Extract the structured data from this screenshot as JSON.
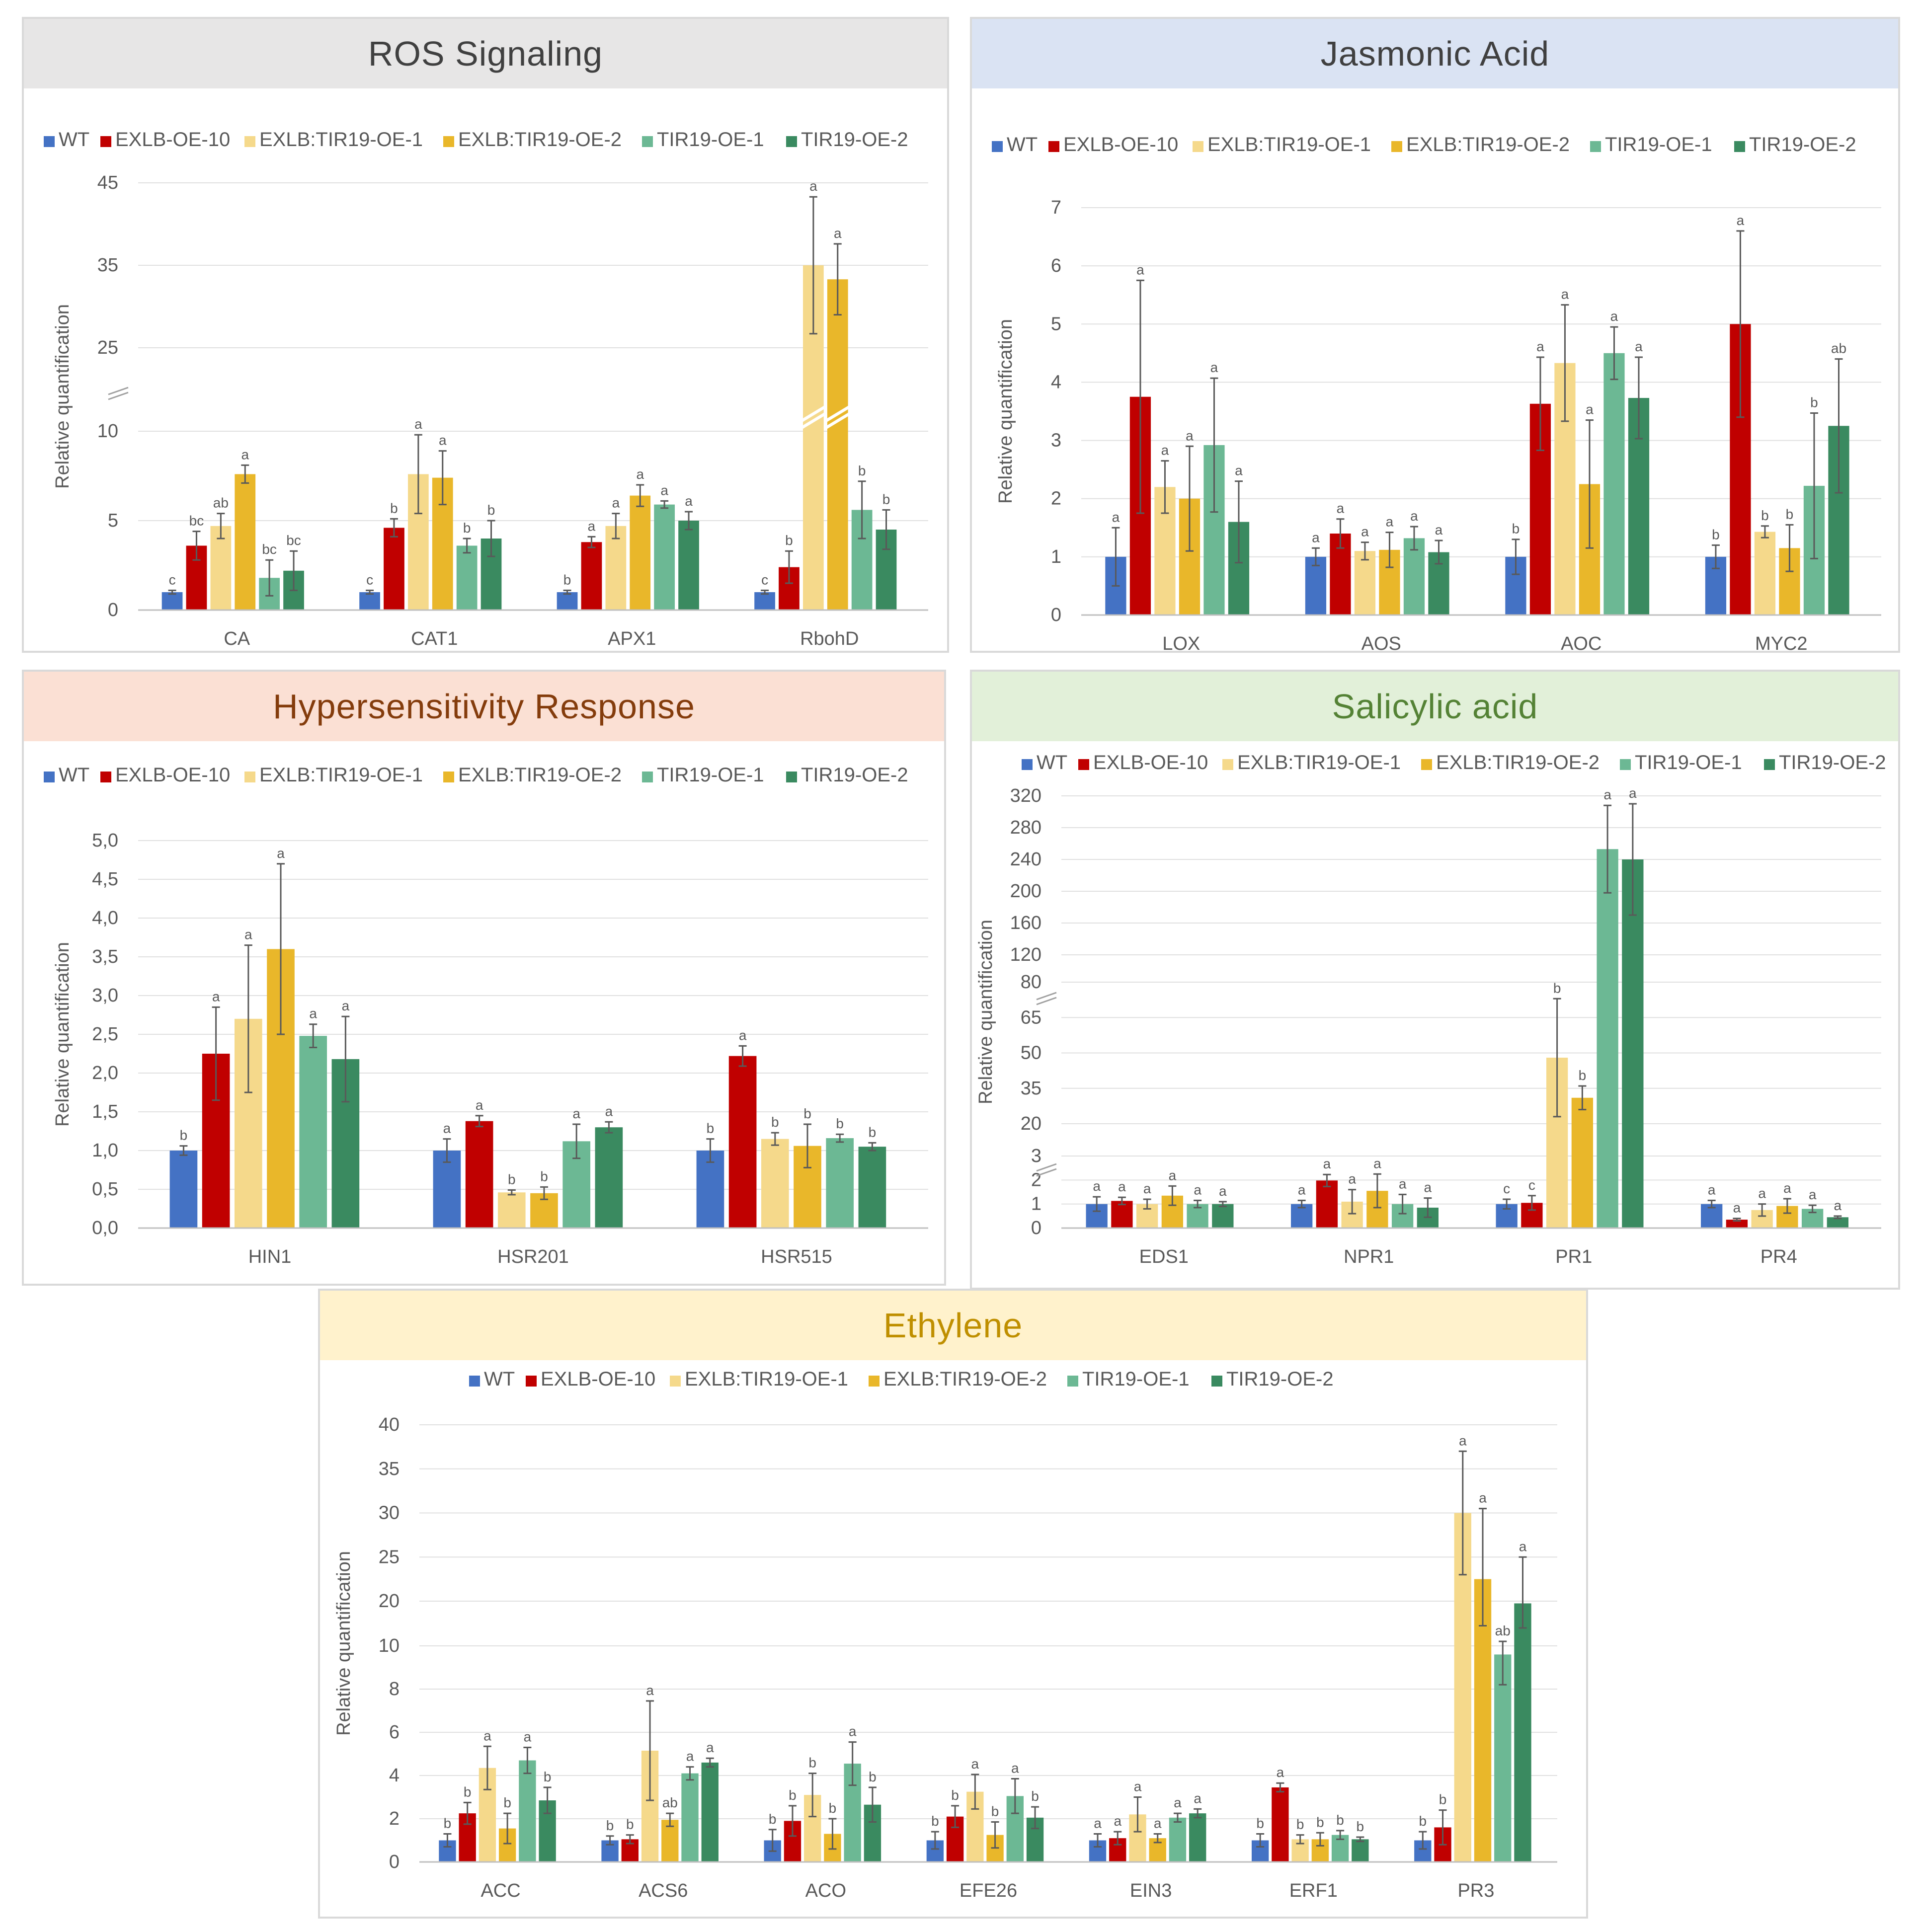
{
  "legend": [
    {
      "name": "WT",
      "color": "#4472c4"
    },
    {
      "name": "EXLB-OE-10",
      "color": "#c00000"
    },
    {
      "name": "EXLB:TIR19-OE-1",
      "color": "#f5d98b"
    },
    {
      "name": "EXLB:TIR19-OE-2",
      "color": "#e9b72a"
    },
    {
      "name": "TIR19-OE-1",
      "color": "#6cb894"
    },
    {
      "name": "TIR19-OE-2",
      "color": "#3a8a60"
    }
  ],
  "chart_data": [
    {
      "id": "ros",
      "type": "bar",
      "title": "ROS Signaling",
      "header_bg": "#e7e6e6",
      "header_color": "#404040",
      "ylabel": "Relative quantification",
      "yticks": [
        "0",
        "5",
        "10",
        "25",
        "35",
        "45"
      ],
      "axis_break": true,
      "categories": [
        "CA",
        "CAT1",
        "APX1",
        "RbohD"
      ],
      "values": [
        [
          1.0,
          3.6,
          4.7,
          7.6,
          1.8,
          2.2
        ],
        [
          1.0,
          4.6,
          7.6,
          7.4,
          3.6,
          4.0
        ],
        [
          1.0,
          3.8,
          4.7,
          6.4,
          5.9,
          5.0
        ],
        [
          1.0,
          2.4,
          35.0,
          33.3,
          5.6,
          4.5
        ]
      ],
      "errors": [
        [
          0.1,
          0.8,
          0.7,
          0.5,
          1.0,
          1.1
        ],
        [
          0.1,
          0.5,
          2.2,
          1.5,
          0.4,
          1.0
        ],
        [
          0.1,
          0.3,
          0.7,
          0.6,
          0.2,
          0.5
        ],
        [
          0.1,
          0.9,
          8.3,
          4.3,
          1.6,
          1.1
        ]
      ],
      "letters": [
        [
          "c",
          "bc",
          "ab",
          "a",
          "bc",
          "bc"
        ],
        [
          "c",
          "b",
          "a",
          "a",
          "b",
          "b"
        ],
        [
          "b",
          "a",
          "a",
          "a",
          "a",
          "a"
        ],
        [
          "c",
          "b",
          "a",
          "a",
          "b",
          "b"
        ]
      ]
    },
    {
      "id": "ja",
      "type": "bar",
      "title": "Jasmonic Acid",
      "header_bg": "#dae3f3",
      "header_color": "#404040",
      "ylabel": "Relative quantification",
      "yticks": [
        "0",
        "1",
        "2",
        "3",
        "4",
        "5",
        "6",
        "7"
      ],
      "axis_break": false,
      "ylim": [
        0,
        7
      ],
      "categories": [
        "LOX",
        "AOS",
        "AOC",
        "MYC2"
      ],
      "values": [
        [
          1.0,
          3.75,
          2.2,
          2.0,
          2.92,
          1.6
        ],
        [
          1.0,
          1.4,
          1.1,
          1.12,
          1.32,
          1.08
        ],
        [
          1.0,
          3.63,
          4.33,
          2.25,
          4.5,
          3.73
        ],
        [
          1.0,
          5.0,
          1.43,
          1.15,
          2.22,
          3.25
        ]
      ],
      "errors": [
        [
          0.5,
          2.0,
          0.45,
          0.9,
          1.15,
          0.7
        ],
        [
          0.15,
          0.25,
          0.15,
          0.3,
          0.2,
          0.2
        ],
        [
          0.3,
          0.8,
          1.0,
          1.1,
          0.45,
          0.7
        ],
        [
          0.2,
          1.6,
          0.1,
          0.4,
          1.25,
          1.15
        ]
      ],
      "letters": [
        [
          "a",
          "a",
          "a",
          "a",
          "a",
          "a"
        ],
        [
          "a",
          "a",
          "a",
          "a",
          "a",
          "a"
        ],
        [
          "b",
          "a",
          "a",
          "a",
          "a",
          "a"
        ],
        [
          "b",
          "a",
          "b",
          "b",
          "b",
          "ab"
        ]
      ]
    },
    {
      "id": "hr",
      "type": "bar",
      "title": "Hypersensitivity Response",
      "header_bg": "#fbe0d4",
      "header_color": "#843c0c",
      "ylabel": "Relative quantification",
      "yticks": [
        "0,0",
        "0,5",
        "1,0",
        "1,5",
        "2,0",
        "2,5",
        "3,0",
        "3,5",
        "4,0",
        "4,5",
        "5,0"
      ],
      "axis_break": false,
      "ylim": [
        0,
        5
      ],
      "categories": [
        "HIN1",
        "HSR201",
        "HSR515"
      ],
      "values": [
        [
          1.0,
          2.25,
          2.7,
          3.6,
          2.48,
          2.18
        ],
        [
          1.0,
          1.38,
          0.46,
          0.45,
          1.12,
          1.3
        ],
        [
          1.0,
          2.22,
          1.15,
          1.06,
          1.16,
          1.05
        ]
      ],
      "errors": [
        [
          0.06,
          0.6,
          0.95,
          1.1,
          0.15,
          0.55
        ],
        [
          0.15,
          0.07,
          0.03,
          0.08,
          0.22,
          0.07
        ],
        [
          0.15,
          0.13,
          0.08,
          0.28,
          0.05,
          0.05
        ]
      ],
      "letters": [
        [
          "b",
          "a",
          "a",
          "a",
          "a",
          "a"
        ],
        [
          "a",
          "a",
          "b",
          "b",
          "a",
          "a"
        ],
        [
          "b",
          "a",
          "b",
          "b",
          "b",
          "b"
        ]
      ]
    },
    {
      "id": "sa",
      "type": "bar",
      "title": "Salicylic acid",
      "header_bg": "#e2f0d9",
      "header_color": "#548235",
      "ylabel": "Relative quantification",
      "yticks": [
        "0",
        "1",
        "2",
        "3",
        "20",
        "35",
        "50",
        "65",
        "80",
        "120",
        "160",
        "200",
        "240",
        "280",
        "320"
      ],
      "axis_break": true,
      "categories": [
        "EDS1",
        "NPR1",
        "PR1",
        "PR4"
      ],
      "values": [
        [
          1.0,
          1.13,
          1.0,
          1.35,
          1.0,
          1.0
        ],
        [
          1.0,
          1.98,
          1.1,
          1.55,
          1.0,
          0.85
        ],
        [
          1.0,
          1.05,
          48.0,
          31.0,
          253.0,
          240.0
        ],
        [
          1.0,
          0.35,
          0.75,
          0.92,
          0.8,
          0.45
        ]
      ],
      "errors": [
        [
          0.3,
          0.15,
          0.2,
          0.4,
          0.15,
          0.1
        ],
        [
          0.15,
          0.25,
          0.5,
          0.7,
          0.4,
          0.4
        ],
        [
          0.2,
          0.3,
          25.0,
          5.0,
          55.0,
          70.0
        ],
        [
          0.15,
          0.05,
          0.25,
          0.3,
          0.15,
          0.05
        ]
      ],
      "letters": [
        [
          "a",
          "a",
          "a",
          "a",
          "a",
          "a"
        ],
        [
          "a",
          "a",
          "a",
          "a",
          "a",
          "a"
        ],
        [
          "c",
          "c",
          "b",
          "b",
          "a",
          "a"
        ],
        [
          "a",
          "a",
          "a",
          "a",
          "a",
          "a"
        ]
      ]
    },
    {
      "id": "eth",
      "type": "bar",
      "title": "Ethylene",
      "header_bg": "#fff2cc",
      "header_color": "#bf8f00",
      "ylabel": "Relative quantification",
      "yticks": [
        "0",
        "2",
        "4",
        "6",
        "8",
        "10",
        "20",
        "25",
        "30",
        "35",
        "40"
      ],
      "axis_break": true,
      "categories": [
        "ACC",
        "ACS6",
        "ACO",
        "EFE26",
        "EIN3",
        "ERF1",
        "PR3"
      ],
      "values": [
        [
          1.0,
          2.25,
          4.35,
          1.55,
          4.7,
          2.85
        ],
        [
          1.0,
          1.05,
          5.15,
          1.95,
          4.1,
          4.6
        ],
        [
          1.0,
          1.9,
          3.1,
          1.3,
          4.55,
          2.65
        ],
        [
          1.0,
          2.1,
          3.25,
          1.25,
          3.05,
          2.05
        ],
        [
          1.0,
          1.1,
          2.2,
          1.1,
          2.05,
          2.25
        ],
        [
          1.0,
          3.45,
          1.05,
          1.05,
          1.25,
          1.05
        ]
      ],
      "errors": [
        [
          0.3,
          0.5,
          1.0,
          0.7,
          0.6,
          0.6
        ],
        [
          0.2,
          0.2,
          2.3,
          0.3,
          0.3,
          0.2
        ],
        [
          0.5,
          0.7,
          1.0,
          0.7,
          1.0,
          0.8
        ],
        [
          0.4,
          0.5,
          0.8,
          0.6,
          0.8,
          0.5
        ],
        [
          0.3,
          0.3,
          0.8,
          0.2,
          0.2,
          0.2
        ],
        [
          0.3,
          0.2,
          0.2,
          0.3,
          0.2,
          0.1
        ]
      ],
      "letters": [
        [
          "b",
          "b",
          "a",
          "b",
          "a",
          "b"
        ],
        [
          "b",
          "b",
          "a",
          "ab",
          "a",
          "a"
        ],
        [
          "b",
          "b",
          "b",
          "b",
          "a",
          "b"
        ],
        [
          "b",
          "b",
          "a",
          "b",
          "a",
          "b"
        ],
        [
          "a",
          "a",
          "a",
          "a",
          "a",
          "a"
        ],
        [
          "b",
          "a",
          "b",
          "b",
          "b",
          "b"
        ]
      ],
      "extra_category": {
        "name": "PR3",
        "values": [
          1.0,
          1.6,
          30.0,
          22.5,
          9.6,
          19.5
        ],
        "errors": [
          0.4,
          0.8,
          7.0,
          8.0,
          1.4,
          5.5
        ],
        "letters": [
          "b",
          "b",
          "a",
          "a",
          "ab",
          "a"
        ]
      }
    }
  ]
}
